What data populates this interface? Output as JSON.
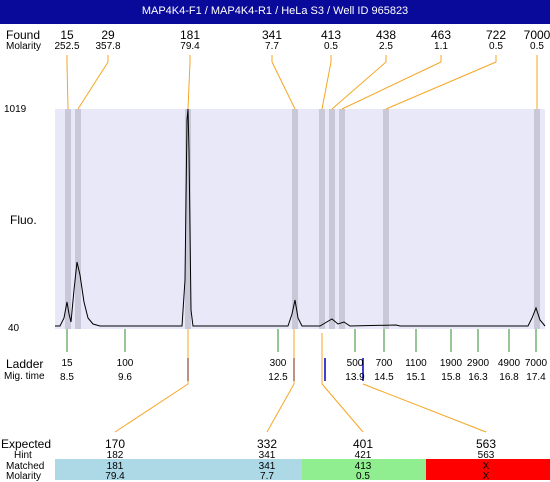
{
  "title": "MAP4K4-F1 / MAP4K4-R1 / HeLa S3 / Well ID 965823",
  "labels": {
    "found": "Found",
    "molarity": "Molarity",
    "fluo": "Fluo.",
    "ladder": "Ladder",
    "migtime": "Mig. time",
    "expected": "Expected",
    "hint": "Hint",
    "matched": "Matched",
    "molarity_bottom": "Molarity"
  },
  "colors": {
    "title_bg": "#0a0a9a",
    "plot_bg": "#e8e8f8",
    "band": "#c8c8d8",
    "connector": "#f5a623",
    "ladder_tick": "#2e8b2e",
    "marker_tick": "#0000cc",
    "matched_blue": "#add8e6",
    "matched_green": "#90ee90",
    "matched_red": "#ff0000"
  },
  "chart_data": {
    "type": "line",
    "y_axis_labels": [
      "1019",
      "40"
    ],
    "found": [
      {
        "size": "15",
        "molarity": "252.5"
      },
      {
        "size": "29",
        "molarity": "357.8"
      },
      {
        "size": "181",
        "molarity": "79.4"
      },
      {
        "size": "341",
        "molarity": "7.7"
      },
      {
        "size": "413",
        "molarity": "0.5"
      },
      {
        "size": "438",
        "molarity": "2.5"
      },
      {
        "size": "463",
        "molarity": "1.1"
      },
      {
        "size": "722",
        "molarity": "0.5"
      },
      {
        "size": "7000",
        "molarity": "0.5"
      }
    ],
    "ladder": [
      {
        "size": "15",
        "mig_time": "8.5"
      },
      {
        "size": "100",
        "mig_time": "9.6"
      },
      {
        "size": "300",
        "mig_time": "12.5"
      },
      {
        "size": "500",
        "mig_time": "13.9"
      },
      {
        "size": "700",
        "mig_time": "14.5"
      },
      {
        "size": "1100",
        "mig_time": "15.1"
      },
      {
        "size": "1900",
        "mig_time": "15.8"
      },
      {
        "size": "2900",
        "mig_time": "16.3"
      },
      {
        "size": "4900",
        "mig_time": "16.8"
      },
      {
        "size": "7000",
        "mig_time": "17.4"
      }
    ],
    "expected": [
      {
        "expected": "170",
        "hint": "182",
        "matched": "181",
        "molarity": "79.4",
        "status": "blue"
      },
      {
        "expected": "332",
        "hint": "341",
        "matched": "341",
        "molarity": "7.7",
        "status": "blue"
      },
      {
        "expected": "401",
        "hint": "421",
        "matched": "413",
        "molarity": "0.5",
        "status": "green"
      },
      {
        "expected": "563",
        "hint": "563",
        "matched": "X",
        "molarity": "X",
        "status": "red"
      }
    ]
  }
}
